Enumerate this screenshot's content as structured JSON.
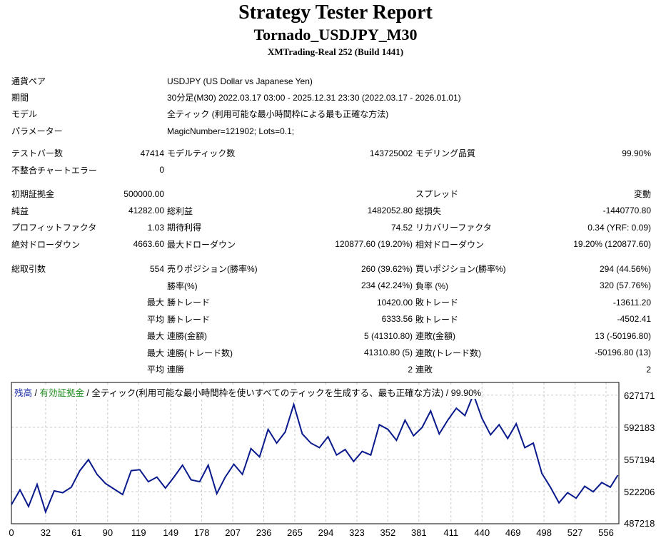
{
  "header": {
    "title": "Strategy Tester Report",
    "subtitle": "Tornado_USDJPY_M30",
    "build": "XMTrading-Real 252 (Build 1441)"
  },
  "info": [
    {
      "label": "通貨ペア",
      "value": "USDJPY (US Dollar vs Japanese Yen)"
    },
    {
      "label": "期間",
      "value": "30分足(M30) 2022.03.17 03:00 - 2025.12.31 23:30 (2022.03.17 - 2026.01.01)"
    },
    {
      "label": "モデル",
      "value": "全ティック (利用可能な最小時間枠による最も正確な方法)"
    },
    {
      "label": "パラメーター",
      "value": "MagicNumber=121902; Lots=0.1;"
    }
  ],
  "stats": {
    "bars_label": "テストバー数",
    "bars": "47414",
    "ticks_label": "モデルティック数",
    "ticks": "143725002",
    "quality_label": "モデリング品質",
    "quality": "99.90%",
    "mismatch_label": "不整合チャートエラー",
    "mismatch": "0",
    "deposit_label": "初期証拠金",
    "deposit": "500000.00",
    "spread_label": "スプレッド",
    "spread": "変動",
    "net_label": "純益",
    "net": "41282.00",
    "gross_profit_label": "総利益",
    "gross_profit": "1482052.80",
    "gross_loss_label": "総損失",
    "gross_loss": "-1440770.80",
    "pf_label": "プロフィットファクタ",
    "pf": "1.03",
    "expected_label": "期待利得",
    "expected": "74.52",
    "recovery_label": "リカバリーファクタ",
    "recovery": "0.34 (YRF: 0.09)",
    "abs_dd_label": "絶対ドローダウン",
    "abs_dd": "4663.60",
    "max_dd_label": "最大ドローダウン",
    "max_dd": "120877.60 (19.20%)",
    "rel_dd_label": "相対ドローダウン",
    "rel_dd": "19.20% (120877.60)",
    "trades_label": "総取引数",
    "trades": "554",
    "short_label": "売りポジション(勝率%)",
    "short": "260 (39.62%)",
    "long_label": "買いポジション(勝率%)",
    "long": "294 (44.56%)",
    "winrate_label": "勝率(%)",
    "winrate": "234 (42.24%)",
    "lossrate_label": "負率 (%)",
    "lossrate": "320 (57.76%)",
    "pre_max": "最大",
    "pre_avg": "平均",
    "largest_win_label": "勝トレード",
    "largest_win": "10420.00",
    "largest_loss_label": "敗トレード",
    "largest_loss": "-13611.20",
    "avg_win_label": "勝トレード",
    "avg_win": "6333.56",
    "avg_loss_label": "敗トレード",
    "avg_loss": "-4502.41",
    "max_cons_win_label": "連勝(金額)",
    "max_cons_win": "5 (41310.80)",
    "max_cons_loss_label": "連敗(金額)",
    "max_cons_loss": "13 (-50196.80)",
    "max_cons_profit_label": "連勝(トレード数)",
    "max_cons_profit": "41310.80 (5)",
    "max_cons_lossamt_label": "連敗(トレード数)",
    "max_cons_lossamt": "-50196.80 (13)",
    "avg_cons_win_label": "連勝",
    "avg_cons_win": "2",
    "avg_cons_loss_label": "連敗",
    "avg_cons_loss": "2"
  },
  "chart_caption": {
    "balance": "残高",
    "sep": " / ",
    "equity": "有効証拠金",
    "model": " / 全ティック(利用可能な最小時間枠を使いすべてのティックを生成する、最も正確な方法) / 99.90%"
  },
  "colors": {
    "balance_line": "#0a1a8c",
    "equity_label": "#1f8c1f",
    "grid": "#c8c8c8"
  },
  "chart_data": {
    "type": "line",
    "xlim": [
      0,
      568
    ],
    "ylim": [
      487218,
      641000
    ],
    "x_ticks": [
      "0",
      "32",
      "61",
      "90",
      "119",
      "149",
      "178",
      "207",
      "236",
      "265",
      "294",
      "323",
      "352",
      "381",
      "411",
      "440",
      "469",
      "498",
      "527",
      "556"
    ],
    "y_ticks": [
      627171,
      592183,
      557194,
      522206,
      487218
    ],
    "series": [
      {
        "name": "残高",
        "x": [
          0,
          8,
          16,
          24,
          32,
          40,
          48,
          56,
          64,
          72,
          80,
          88,
          96,
          104,
          112,
          120,
          128,
          136,
          144,
          152,
          160,
          168,
          176,
          184,
          192,
          200,
          208,
          216,
          224,
          232,
          240,
          248,
          256,
          264,
          272,
          280,
          288,
          296,
          304,
          312,
          320,
          328,
          336,
          344,
          352,
          360,
          368,
          376,
          384,
          392,
          400,
          408,
          416,
          424,
          432,
          440,
          448,
          456,
          464,
          472,
          480,
          488,
          496,
          504,
          512,
          520,
          528,
          536,
          544,
          552,
          560,
          567
        ],
        "y": [
          508000,
          524000,
          506000,
          530000,
          500000,
          523000,
          521000,
          527000,
          545000,
          557000,
          541000,
          531000,
          525000,
          519000,
          545000,
          546000,
          533000,
          538000,
          526000,
          538000,
          551000,
          535000,
          533000,
          551000,
          520000,
          538000,
          552000,
          541000,
          569000,
          560000,
          590000,
          575000,
          587000,
          617000,
          585000,
          575000,
          570000,
          582000,
          562000,
          568000,
          555000,
          566000,
          562000,
          595000,
          590000,
          578000,
          600000,
          583000,
          592000,
          610000,
          585000,
          600000,
          613000,
          605000,
          628000,
          602000,
          584000,
          595000,
          580000,
          596000,
          570000,
          575000,
          542000,
          527000,
          510000,
          521000,
          515000,
          528000,
          522000,
          532000,
          527000,
          540000
        ]
      }
    ]
  }
}
